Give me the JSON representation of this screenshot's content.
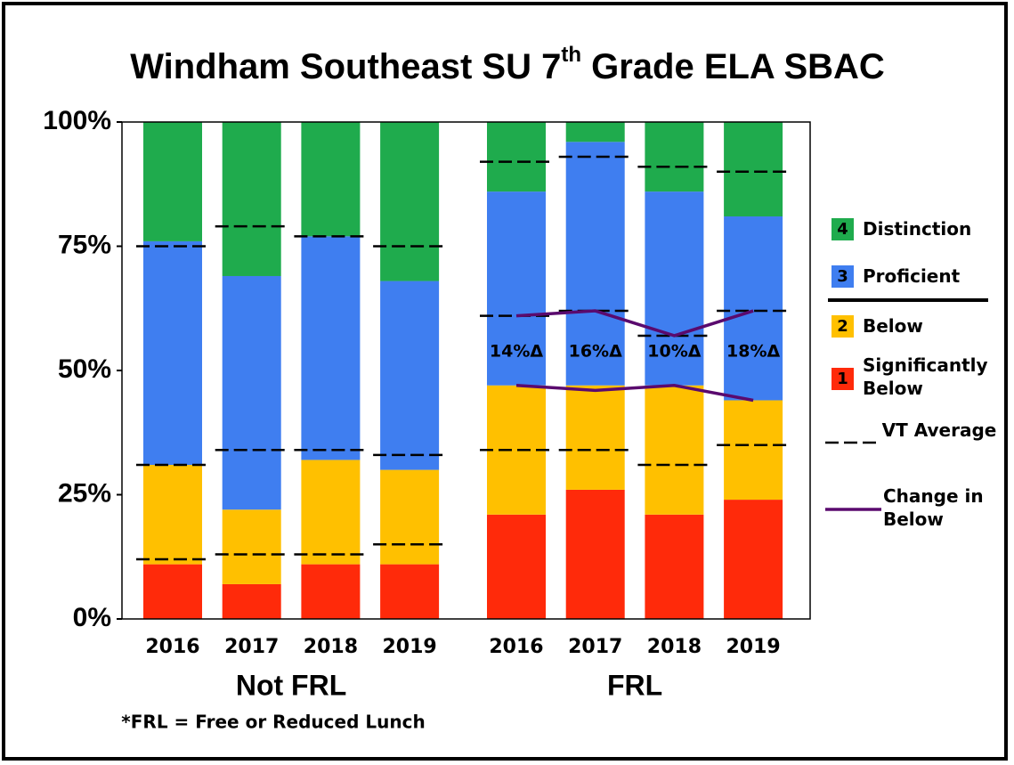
{
  "chart_data": {
    "type": "bar",
    "stacked": true,
    "title_parts": [
      "Windham Southeast SU 7",
      "th",
      " Grade ELA SBAC"
    ],
    "groups": [
      {
        "label": "Not FRL",
        "categories": [
          "2016",
          "2017",
          "2018",
          "2019"
        ]
      },
      {
        "label": "FRL",
        "categories": [
          "2016",
          "2017",
          "2018",
          "2019"
        ]
      }
    ],
    "series": [
      {
        "name": "Significantly Below",
        "code": "1",
        "color": "#ff2a0a",
        "values": [
          11,
          7,
          11,
          11,
          21,
          26,
          21,
          24
        ]
      },
      {
        "name": "Below",
        "code": "2",
        "color": "#ffc000",
        "values": [
          20,
          15,
          21,
          19,
          26,
          21,
          26,
          20
        ]
      },
      {
        "name": "Proficient",
        "code": "3",
        "color": "#3f7ef0",
        "values": [
          45,
          47,
          45,
          38,
          39,
          49,
          39,
          37
        ]
      },
      {
        "name": "Distinction",
        "code": "4",
        "color": "#1fab4d",
        "values": [
          24,
          31,
          23,
          32,
          14,
          4,
          14,
          19
        ]
      }
    ],
    "vt_average": {
      "name": "VT Average",
      "color": "#000000",
      "levels": [
        [
          12,
          13,
          13,
          15,
          34,
          34,
          31,
          35
        ],
        [
          31,
          34,
          34,
          33,
          61,
          62,
          57,
          62
        ],
        [
          75,
          79,
          77,
          75,
          92,
          93,
          91,
          90
        ]
      ]
    },
    "change_in_below": {
      "name": "Change in Below",
      "color": "#5a0a6e",
      "upper": [
        61,
        62,
        57,
        62
      ],
      "lower": [
        47,
        46,
        47,
        44
      ],
      "values": [
        14,
        16,
        10,
        18
      ],
      "value_labels": [
        "14%Δ",
        "16%Δ",
        "10%Δ",
        "18%Δ"
      ]
    },
    "ylim": [
      0,
      100
    ],
    "yticks": [
      {
        "value": 0,
        "label": "0%"
      },
      {
        "value": 25,
        "label": "25%"
      },
      {
        "value": 50,
        "label": "50%"
      },
      {
        "value": 75,
        "label": "75%"
      },
      {
        "value": 100,
        "label": "100%"
      }
    ],
    "grid": false,
    "legend_position": "right",
    "footnote": "*FRL = Free or Reduced Lunch"
  }
}
